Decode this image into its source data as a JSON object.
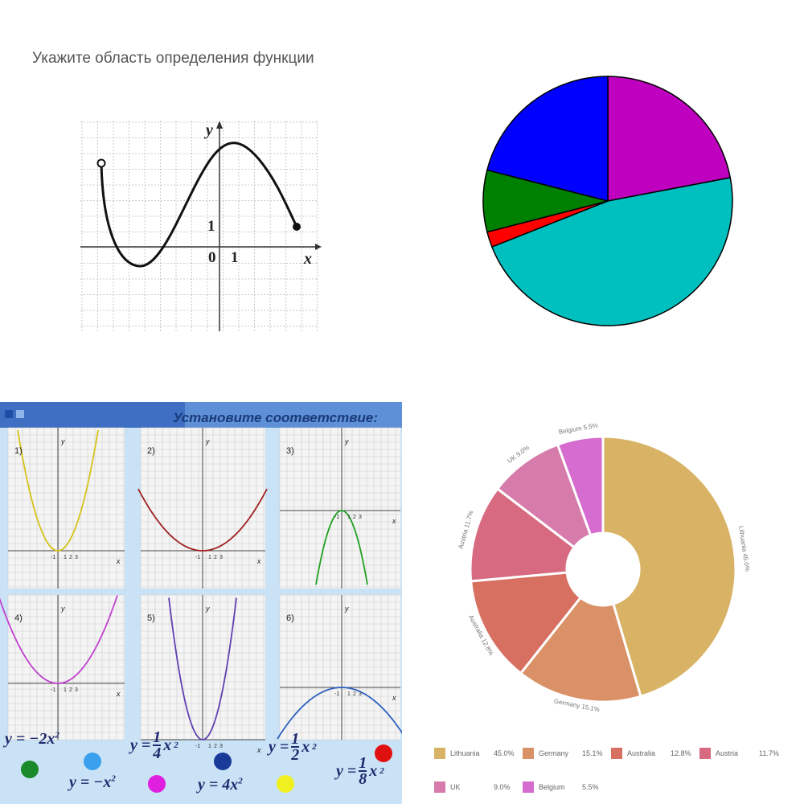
{
  "panel1": {
    "title": "Укажите область определения функции",
    "y_axis": "y",
    "x_axis": "x",
    "origin": "0",
    "x_tick": "1",
    "y_tick": "1"
  },
  "panel2": {
    "chart_data": {
      "type": "pie",
      "slices": [
        {
          "color": "#bf00bf",
          "value": 22
        },
        {
          "color": "#00bfbf",
          "value": 47
        },
        {
          "color": "#ff0000",
          "value": 2
        },
        {
          "color": "#008000",
          "value": 8
        },
        {
          "color": "#0000ff",
          "value": 21
        }
      ]
    }
  },
  "panel3": {
    "title": "Установите соответствие:",
    "graph_labels": [
      "1)",
      "2)",
      "3)",
      "4)",
      "5)",
      "6)"
    ],
    "axis_y": "y",
    "axis_x": "x",
    "tick_labels": [
      "-1",
      "1",
      "2",
      "3"
    ],
    "formulas": {
      "f1": {
        "lhs": "y = −2x",
        "exp": "2"
      },
      "f2": {
        "lhs": "y = −x",
        "exp": "2"
      },
      "f3": {
        "lhs": "y =",
        "num": "1",
        "den": "4",
        "var": "x",
        "exp": "2"
      },
      "f4": {
        "lhs": "y = 4x",
        "exp": "2"
      },
      "f5": {
        "lhs": "y =",
        "num": "1",
        "den": "2",
        "var": "x",
        "exp": "2"
      },
      "f6": {
        "lhs": "y =",
        "num": "1",
        "den": "8",
        "var": "x",
        "exp": "2"
      }
    },
    "dot_colors": [
      "#1a8a2a",
      "#3aa0ee",
      "#e020e0",
      "#1a3a9a",
      "#f0f020",
      "#e01010"
    ],
    "curve_colors": [
      "#d6c21a",
      "#a02020",
      "#20a020",
      "#c040d0",
      "#6040b0",
      "#3060c0"
    ]
  },
  "panel4": {
    "chart_data": {
      "type": "pie",
      "donut": true,
      "slices": [
        {
          "name": "Lithuania",
          "value": 45.0,
          "label": "45.0%",
          "color": "#d9b365"
        },
        {
          "name": "Germany",
          "value": 15.1,
          "label": "15.1%",
          "color": "#db9168"
        },
        {
          "name": "Australia",
          "value": 12.8,
          "label": "12.8%",
          "color": "#d87062"
        },
        {
          "name": "Austria",
          "value": 11.7,
          "label": "11.7%",
          "color": "#d76a80"
        },
        {
          "name": "UK",
          "value": 9.0,
          "label": "9.0%",
          "color": "#d67baa"
        },
        {
          "name": "Belgium",
          "value": 5.5,
          "label": "5.5%",
          "color": "#d66ccf"
        }
      ],
      "slice_labels": [
        "Lithuania 45.0%",
        "Germany 15.1%",
        "Australia 12.8%",
        "Austria 11.7%",
        "UK 9.0%",
        "Belgium 5.5%"
      ]
    }
  }
}
